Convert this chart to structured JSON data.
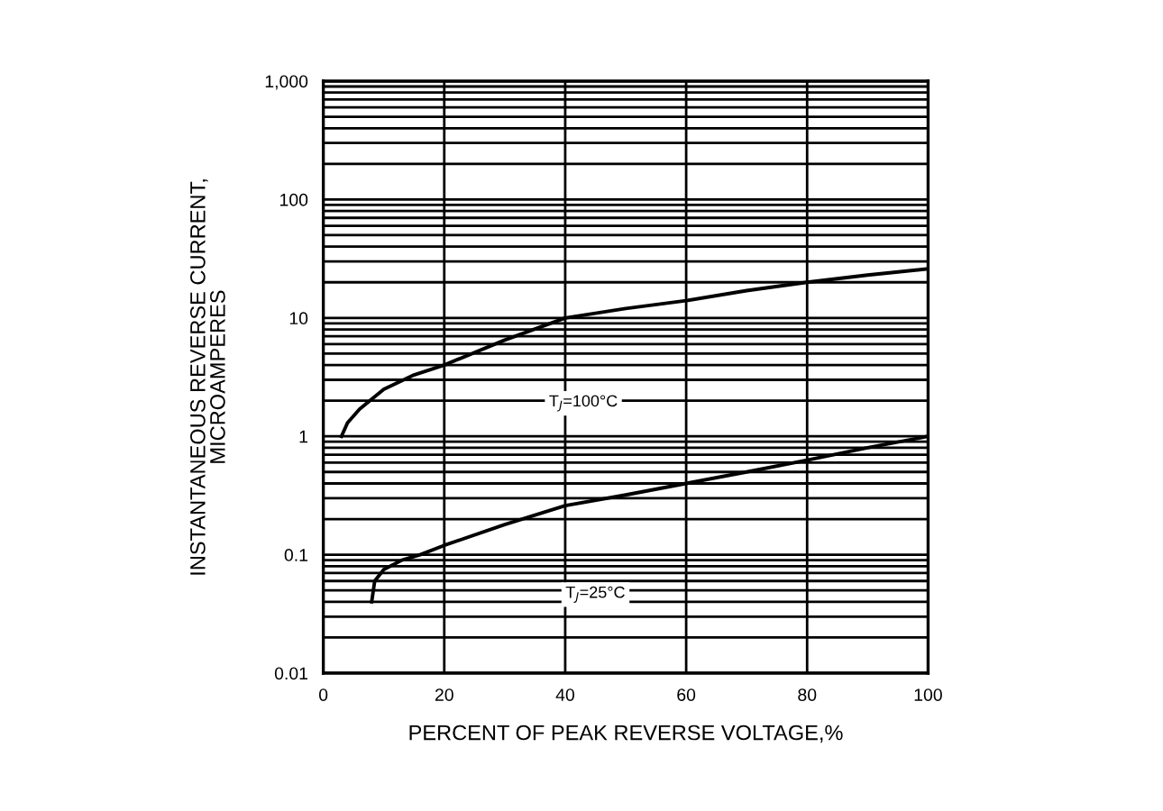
{
  "chart_data": {
    "type": "line",
    "xlabel": "PERCENT OF PEAK REVERSE VOLTAGE,%",
    "ylabel": "INSTANTANEOUS REVERSE CURRENT,\nMICROAMPERES",
    "series": [
      {
        "color": "#000000",
        "x": [
          3,
          4,
          6,
          10,
          15,
          20,
          30,
          40,
          50,
          60,
          70,
          80,
          90,
          100
        ],
        "values": [
          1,
          1.3,
          1.7,
          2.5,
          3.3,
          4,
          6.5,
          10,
          12,
          14,
          17,
          20,
          23,
          26
        ]
      },
      {
        "color": "#000000",
        "x": [
          8,
          8.5,
          10,
          13,
          16,
          20,
          30,
          40,
          50,
          60,
          70,
          80,
          90,
          100
        ],
        "values": [
          0.04,
          0.06,
          0.075,
          0.09,
          0.1,
          0.12,
          0.18,
          0.26,
          0.32,
          0.4,
          0.5,
          0.63,
          0.8,
          1.0
        ]
      }
    ],
    "log": "y",
    "xlim": [
      0,
      100
    ],
    "ylim": [
      0.01,
      1000
    ],
    "xticks": [
      0,
      20,
      40,
      60,
      80,
      100
    ],
    "yticks": [
      {
        "value": 0.01,
        "label": "0.01"
      },
      {
        "value": 0.1,
        "label": "0.1"
      },
      1,
      10,
      100,
      {
        "value": 1000,
        "label": "1,000"
      }
    ],
    "grid": true,
    "line_style": "solid",
    "marker": "none",
    "annotations": [
      {
        "text": "T$_{J}$=100°C",
        "x": 43,
        "y": 1.9
      },
      {
        "text": "T$_{J}$=25°C",
        "x": 45,
        "y": 0.046
      }
    ]
  }
}
